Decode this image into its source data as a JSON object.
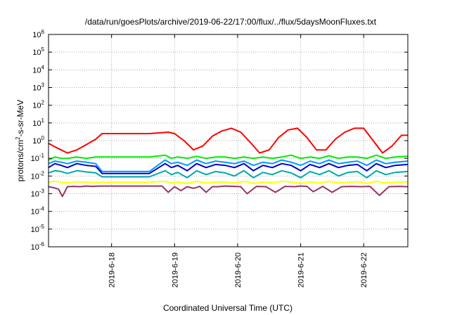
{
  "chart_data": {
    "type": "line",
    "title": "/data/run/goesPlots/archive/2019-06-22/17:00/flux/../flux/5daysMoonFluxes.txt",
    "xlabel": "Coordinated Universal Time (UTC)",
    "ylabel_base": "protons/cm",
    "ylabel_sup": "2",
    "ylabel_rest": "-s-sr-MeV",
    "yscale": "log",
    "ylim": [
      1e-06,
      1000000.0
    ],
    "xlim": [
      0,
      5.7
    ],
    "y_ticks": [
      {
        "base": "10",
        "exp": "6",
        "value": 6
      },
      {
        "base": "10",
        "exp": "5",
        "value": 5
      },
      {
        "base": "10",
        "exp": "4",
        "value": 4
      },
      {
        "base": "10",
        "exp": "3",
        "value": 3
      },
      {
        "base": "10",
        "exp": "2",
        "value": 2
      },
      {
        "base": "10",
        "exp": "1",
        "value": 1
      },
      {
        "base": "10",
        "exp": "0",
        "value": 0
      },
      {
        "base": "10",
        "exp": "-1",
        "value": -1
      },
      {
        "base": "10",
        "exp": "-2",
        "value": -2
      },
      {
        "base": "10",
        "exp": "-3",
        "value": -3
      },
      {
        "base": "10",
        "exp": "-4",
        "value": -4
      },
      {
        "base": "10",
        "exp": "-5",
        "value": -5
      },
      {
        "base": "10",
        "exp": "-6",
        "value": -6
      }
    ],
    "x_ticks": [
      {
        "label": "2019-6-18",
        "value": 1
      },
      {
        "label": "2019-6-19",
        "value": 2
      },
      {
        "label": "2019-6-20",
        "value": 3
      },
      {
        "label": "2019-6-21",
        "value": 4
      },
      {
        "label": "2019-6-22",
        "value": 5
      }
    ],
    "grid": true,
    "x_unit": "days",
    "series": [
      {
        "color": "#ff0000",
        "x": [
          0,
          0.1,
          0.2,
          0.3,
          0.45,
          0.6,
          0.75,
          0.85,
          1.0,
          1.3,
          1.6,
          1.9,
          2.0,
          2.15,
          2.3,
          2.45,
          2.6,
          2.75,
          2.9,
          3.05,
          3.2,
          3.35,
          3.5,
          3.65,
          3.8,
          3.95,
          4.1,
          4.25,
          4.4,
          4.55,
          4.7,
          4.85,
          5.0,
          5.15,
          5.3,
          5.45,
          5.6,
          5.7
        ],
        "y": [
          0.7,
          0.45,
          0.3,
          0.2,
          0.3,
          0.6,
          1.2,
          2.5,
          2.5,
          2.5,
          2.5,
          3.0,
          2.5,
          1.0,
          0.3,
          0.5,
          1.8,
          3.5,
          5.0,
          3.0,
          0.8,
          0.2,
          0.3,
          1.5,
          4.0,
          5.0,
          1.5,
          0.3,
          0.3,
          1.2,
          3.0,
          5.0,
          5.0,
          1.0,
          0.2,
          0.5,
          2.0,
          2.0
        ]
      },
      {
        "color": "#00ee00",
        "x": [
          0,
          0.1,
          0.2,
          0.3,
          0.45,
          0.6,
          0.75,
          0.85,
          1.0,
          1.3,
          1.6,
          1.85,
          1.95,
          2.05,
          2.2,
          2.35,
          2.5,
          2.65,
          2.8,
          2.95,
          3.1,
          3.25,
          3.4,
          3.55,
          3.7,
          3.85,
          4.0,
          4.15,
          4.3,
          4.45,
          4.6,
          4.75,
          4.9,
          5.05,
          5.2,
          5.35,
          5.5,
          5.7
        ],
        "y": [
          0.08,
          0.12,
          0.1,
          0.1,
          0.12,
          0.1,
          0.12,
          0.12,
          0.12,
          0.12,
          0.12,
          0.15,
          0.1,
          0.12,
          0.1,
          0.13,
          0.1,
          0.12,
          0.12,
          0.1,
          0.12,
          0.1,
          0.12,
          0.1,
          0.12,
          0.15,
          0.1,
          0.12,
          0.1,
          0.14,
          0.1,
          0.12,
          0.12,
          0.1,
          0.15,
          0.1,
          0.12,
          0.13
        ]
      },
      {
        "color": "#0099ff",
        "x": [
          0,
          0.1,
          0.2,
          0.3,
          0.45,
          0.6,
          0.75,
          0.85,
          1.0,
          1.3,
          1.6,
          1.85,
          1.95,
          2.05,
          2.2,
          2.35,
          2.5,
          2.65,
          2.8,
          2.95,
          3.1,
          3.25,
          3.4,
          3.55,
          3.7,
          3.85,
          4.0,
          4.15,
          4.3,
          4.45,
          4.6,
          4.75,
          4.9,
          5.05,
          5.2,
          5.35,
          5.5,
          5.7
        ],
        "y": [
          0.05,
          0.07,
          0.06,
          0.05,
          0.07,
          0.06,
          0.05,
          0.018,
          0.018,
          0.018,
          0.018,
          0.08,
          0.05,
          0.06,
          0.04,
          0.08,
          0.05,
          0.07,
          0.06,
          0.05,
          0.07,
          0.04,
          0.06,
          0.05,
          0.08,
          0.06,
          0.04,
          0.07,
          0.05,
          0.08,
          0.05,
          0.06,
          0.07,
          0.04,
          0.08,
          0.05,
          0.06,
          0.07
        ]
      },
      {
        "color": "#0000cc",
        "x": [
          0,
          0.1,
          0.2,
          0.3,
          0.45,
          0.6,
          0.75,
          0.85,
          1.0,
          1.3,
          1.6,
          1.85,
          1.95,
          2.05,
          2.2,
          2.35,
          2.5,
          2.65,
          2.8,
          2.95,
          3.1,
          3.25,
          3.4,
          3.55,
          3.7,
          3.85,
          4.0,
          4.15,
          4.3,
          4.45,
          4.6,
          4.75,
          4.9,
          5.05,
          5.2,
          5.35,
          5.5,
          5.7
        ],
        "y": [
          0.03,
          0.05,
          0.04,
          0.03,
          0.05,
          0.04,
          0.035,
          0.014,
          0.014,
          0.014,
          0.014,
          0.05,
          0.03,
          0.04,
          0.02,
          0.05,
          0.03,
          0.045,
          0.04,
          0.03,
          0.05,
          0.02,
          0.04,
          0.03,
          0.05,
          0.04,
          0.02,
          0.045,
          0.03,
          0.05,
          0.03,
          0.04,
          0.045,
          0.02,
          0.05,
          0.03,
          0.04,
          0.045
        ]
      },
      {
        "color": "#00aaaa",
        "x": [
          0,
          0.1,
          0.2,
          0.3,
          0.45,
          0.6,
          0.75,
          0.85,
          1.0,
          1.3,
          1.6,
          1.85,
          1.95,
          2.05,
          2.2,
          2.35,
          2.5,
          2.65,
          2.8,
          2.95,
          3.1,
          3.25,
          3.4,
          3.55,
          3.7,
          3.85,
          4.0,
          4.15,
          4.3,
          4.45,
          4.6,
          4.75,
          4.9,
          5.05,
          5.2,
          5.35,
          5.5,
          5.7
        ],
        "y": [
          0.015,
          0.02,
          0.018,
          0.014,
          0.02,
          0.017,
          0.015,
          0.009,
          0.009,
          0.009,
          0.009,
          0.02,
          0.012,
          0.016,
          0.008,
          0.02,
          0.012,
          0.018,
          0.015,
          0.01,
          0.02,
          0.008,
          0.016,
          0.012,
          0.02,
          0.015,
          0.008,
          0.018,
          0.012,
          0.02,
          0.01,
          0.016,
          0.018,
          0.008,
          0.02,
          0.012,
          0.016,
          0.018
        ]
      },
      {
        "color": "#ffff00",
        "x": [
          0,
          0.1,
          0.2,
          0.3,
          0.45,
          0.6,
          0.75,
          0.85,
          1.0,
          1.3,
          1.6,
          1.85,
          1.95,
          2.05,
          2.2,
          2.35,
          2.5,
          2.65,
          2.8,
          2.95,
          3.1,
          3.25,
          3.4,
          3.55,
          3.7,
          3.85,
          4.0,
          4.15,
          4.3,
          4.45,
          4.6,
          4.75,
          4.9,
          5.05,
          5.2,
          5.35,
          5.5,
          5.7
        ],
        "y": [
          0.0045,
          0.005,
          0.0045,
          0.004,
          0.0048,
          0.0045,
          0.0042,
          0.0045,
          0.0045,
          0.0045,
          0.0045,
          0.005,
          0.004,
          0.0045,
          0.0038,
          0.005,
          0.004,
          0.0046,
          0.0045,
          0.004,
          0.005,
          0.0038,
          0.0045,
          0.0042,
          0.005,
          0.0046,
          0.0038,
          0.0048,
          0.004,
          0.005,
          0.004,
          0.0045,
          0.0048,
          0.0038,
          0.005,
          0.004,
          0.0045,
          0.0046
        ]
      },
      {
        "color": "#993366",
        "x": [
          0,
          0.08,
          0.16,
          0.22,
          0.3,
          0.4,
          0.5,
          0.6,
          0.7,
          0.8,
          0.9,
          1.0,
          1.2,
          1.4,
          1.6,
          1.8,
          1.9,
          2.0,
          2.1,
          2.2,
          2.3,
          2.4,
          2.5,
          2.6,
          2.7,
          2.8,
          2.95,
          3.05,
          3.15,
          3.3,
          3.45,
          3.6,
          3.75,
          3.9,
          4.0,
          4.1,
          4.2,
          4.35,
          4.5,
          4.65,
          4.8,
          4.95,
          5.1,
          5.25,
          5.4,
          5.55,
          5.7
        ],
        "y": [
          0.0025,
          0.0022,
          0.0018,
          0.0007,
          0.0025,
          0.0026,
          0.0025,
          0.0027,
          0.0026,
          0.0027,
          0.0027,
          0.0027,
          0.0027,
          0.0027,
          0.0027,
          0.0027,
          0.0012,
          0.0025,
          0.0015,
          0.0025,
          0.002,
          0.0026,
          0.0012,
          0.0025,
          0.0025,
          0.0027,
          0.0026,
          0.0025,
          0.001,
          0.0026,
          0.0025,
          0.0012,
          0.0026,
          0.0025,
          0.0027,
          0.0026,
          0.0013,
          0.0026,
          0.0012,
          0.0025,
          0.0026,
          0.0025,
          0.0026,
          0.0008,
          0.0025,
          0.0026,
          0.0025
        ]
      }
    ]
  }
}
